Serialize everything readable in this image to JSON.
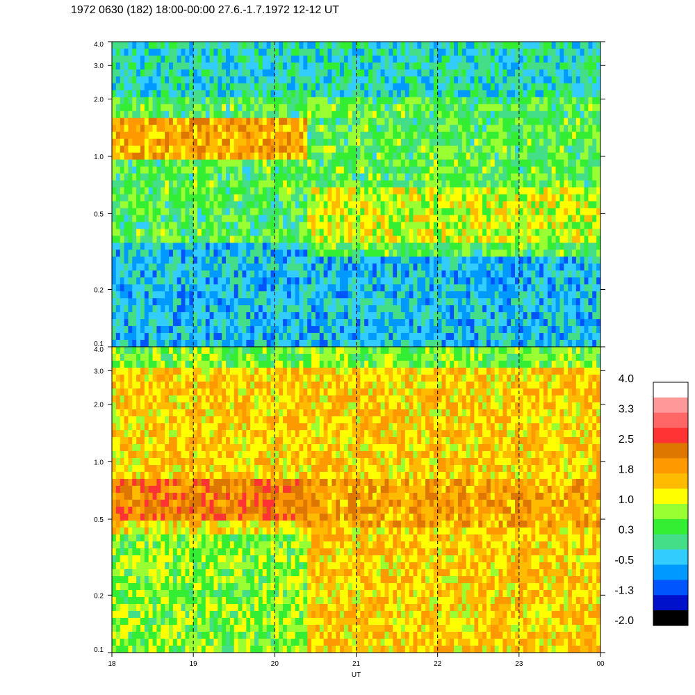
{
  "title": "1972 0630 (182) 18:00-00:00 27.6.-1.7.1972  12-12 UT",
  "chart_data": [
    {
      "type": "heatmap",
      "panel": "top",
      "x_ticks": [
        "18",
        "19",
        "20",
        "21",
        "22",
        "23",
        "00"
      ],
      "x_range": [
        18,
        24
      ],
      "y_ticks": [
        "0.1",
        "0.2",
        "0.5",
        "1.0",
        "2.0",
        "3.0",
        "4.0"
      ],
      "y_range": [
        0.1,
        4.0
      ],
      "y_scale": "log",
      "vertical_dashed_lines_at": [
        19,
        20,
        21,
        22,
        23
      ],
      "bands": [
        {
          "x": [
            18,
            20.4
          ],
          "y": [
            0.95,
            1.6
          ],
          "level": 1.8
        },
        {
          "x": [
            18,
            20.4
          ],
          "y": [
            0.4,
            0.6
          ],
          "level": 0.3
        },
        {
          "x": [
            18,
            20.4
          ],
          "y": [
            0.1,
            0.35
          ],
          "level": -0.5
        },
        {
          "x": [
            20.4,
            24
          ],
          "y": [
            0.35,
            0.7
          ],
          "level": 1.0
        },
        {
          "x": [
            20.4,
            24
          ],
          "y": [
            0.1,
            0.3
          ],
          "level": -0.5
        },
        {
          "x": [
            18,
            24
          ],
          "y": [
            2.0,
            4.0
          ],
          "level": -0.2
        }
      ]
    },
    {
      "type": "heatmap",
      "panel": "bottom",
      "x_ticks": [
        "18",
        "19",
        "20",
        "21",
        "22",
        "23",
        "00"
      ],
      "x_range": [
        18,
        24
      ],
      "x_label": "UT",
      "y_ticks": [
        "0.1",
        "0.2",
        "0.5",
        "1.0",
        "2.0",
        "3.0",
        "4.0"
      ],
      "y_range": [
        0.1,
        4.0
      ],
      "y_scale": "log",
      "vertical_dashed_lines_at": [
        19,
        20,
        21,
        22,
        23
      ],
      "bands": [
        {
          "x": [
            18,
            20.4
          ],
          "y": [
            0.5,
            1.0
          ],
          "level": 2.3
        },
        {
          "x": [
            20.4,
            24
          ],
          "y": [
            0.45,
            0.8
          ],
          "level": 1.9
        },
        {
          "x": [
            18,
            24
          ],
          "y": [
            0.8,
            3.0
          ],
          "level": 1.5
        },
        {
          "x": [
            18,
            20.4
          ],
          "y": [
            0.1,
            0.4
          ],
          "level": 0.7
        },
        {
          "x": [
            20.4,
            24
          ],
          "y": [
            0.1,
            0.4
          ],
          "level": 1.5
        },
        {
          "x": [
            18,
            24
          ],
          "y": [
            3.0,
            4.0
          ],
          "level": 0.6
        }
      ]
    }
  ],
  "colorbar": {
    "labels": [
      "4.0",
      "3.3",
      "2.5",
      "1.8",
      "1.0",
      "0.3",
      "-0.5",
      "-1.3",
      "-2.0"
    ],
    "colors": [
      "#ffffff",
      "#ff9999",
      "#ff6666",
      "#ff3333",
      "#dd7700",
      "#ff9900",
      "#ffbb00",
      "#ffff00",
      "#99ff33",
      "#33ee33",
      "#44dd88",
      "#33ccff",
      "#0099ff",
      "#0055ff",
      "#0011cc",
      "#000000"
    ]
  }
}
